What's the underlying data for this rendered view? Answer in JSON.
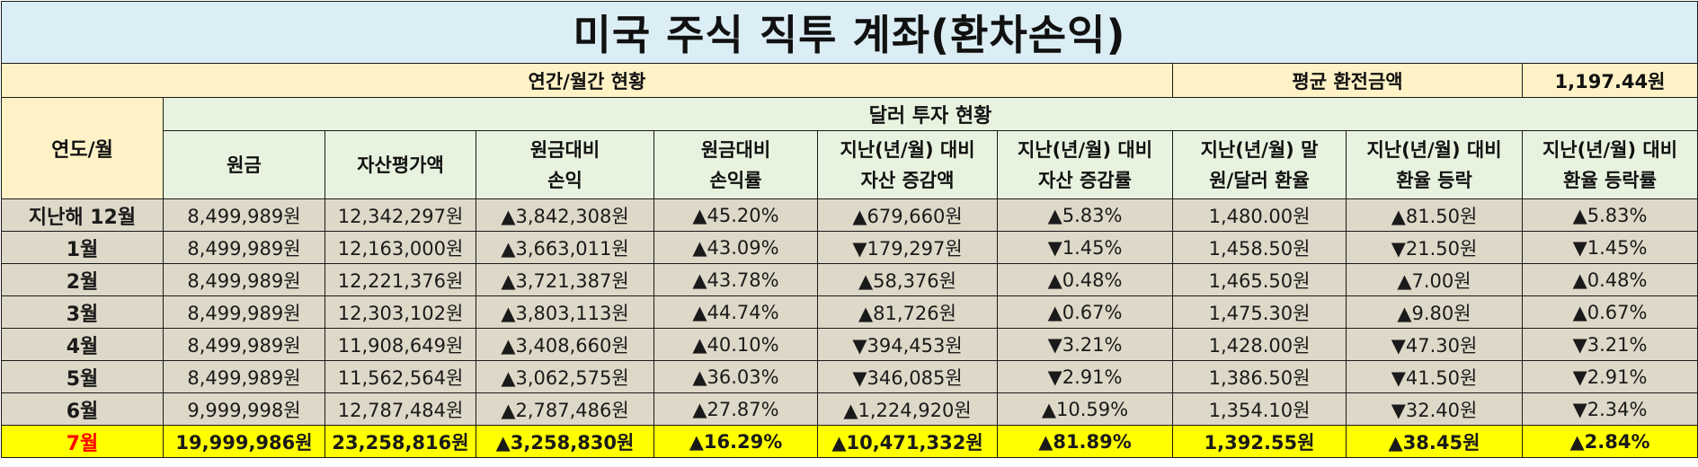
{
  "title": "미국 주식 직투 계좌(환차손익)",
  "summary": {
    "status_label": "연간/월간 현황",
    "avg_exchange_label": "평균 환전금액",
    "avg_exchange_value": "1,197.44원"
  },
  "header": {
    "month_col": "연도/월",
    "group": "달러 투자 현황",
    "columns": [
      [
        "원금"
      ],
      [
        "자산평가액"
      ],
      [
        "원금대비",
        "손익"
      ],
      [
        "원금대비",
        "손익률"
      ],
      [
        "지난(년/월) 대비",
        "자산 증감액"
      ],
      [
        "지난(년/월) 대비",
        "자산 증감률"
      ],
      [
        "지난(년/월) 말",
        "원/달러 환율"
      ],
      [
        "지난(년/월) 대비",
        "환율 등락"
      ],
      [
        "지난(년/월) 대비",
        "환율 등락률"
      ]
    ]
  },
  "colors": {
    "up": "#ff0000",
    "down": "#0000ff",
    "highlight": "#ffff00"
  },
  "rows": [
    {
      "month": "지난해 12월",
      "current": false,
      "cells": [
        {
          "text": "8,499,989원",
          "trend": "none"
        },
        {
          "text": "12,342,297원",
          "trend": "none"
        },
        {
          "text": "▲3,842,308원",
          "trend": "up"
        },
        {
          "text": "▲45.20%",
          "trend": "up"
        },
        {
          "text": "▲679,660원",
          "trend": "up"
        },
        {
          "text": "▲5.83%",
          "trend": "up"
        },
        {
          "text": "1,480.00원",
          "trend": "none"
        },
        {
          "text": "▲81.50원",
          "trend": "up"
        },
        {
          "text": "▲5.83%",
          "trend": "up"
        }
      ]
    },
    {
      "month": "1월",
      "current": false,
      "cells": [
        {
          "text": "8,499,989원",
          "trend": "none"
        },
        {
          "text": "12,163,000원",
          "trend": "none"
        },
        {
          "text": "▲3,663,011원",
          "trend": "up"
        },
        {
          "text": "▲43.09%",
          "trend": "up"
        },
        {
          "text": "▼179,297원",
          "trend": "down"
        },
        {
          "text": "▼1.45%",
          "trend": "down"
        },
        {
          "text": "1,458.50원",
          "trend": "none"
        },
        {
          "text": "▼21.50원",
          "trend": "down"
        },
        {
          "text": "▼1.45%",
          "trend": "down"
        }
      ]
    },
    {
      "month": "2월",
      "current": false,
      "cells": [
        {
          "text": "8,499,989원",
          "trend": "none"
        },
        {
          "text": "12,221,376원",
          "trend": "none"
        },
        {
          "text": "▲3,721,387원",
          "trend": "up"
        },
        {
          "text": "▲43.78%",
          "trend": "up"
        },
        {
          "text": "▲58,376원",
          "trend": "up"
        },
        {
          "text": "▲0.48%",
          "trend": "up"
        },
        {
          "text": "1,465.50원",
          "trend": "none"
        },
        {
          "text": "▲7.00원",
          "trend": "up"
        },
        {
          "text": "▲0.48%",
          "trend": "up"
        }
      ]
    },
    {
      "month": "3월",
      "current": false,
      "cells": [
        {
          "text": "8,499,989원",
          "trend": "none"
        },
        {
          "text": "12,303,102원",
          "trend": "none"
        },
        {
          "text": "▲3,803,113원",
          "trend": "up"
        },
        {
          "text": "▲44.74%",
          "trend": "up"
        },
        {
          "text": "▲81,726원",
          "trend": "up"
        },
        {
          "text": "▲0.67%",
          "trend": "up"
        },
        {
          "text": "1,475.30원",
          "trend": "none"
        },
        {
          "text": "▲9.80원",
          "trend": "up"
        },
        {
          "text": "▲0.67%",
          "trend": "up"
        }
      ]
    },
    {
      "month": "4월",
      "current": false,
      "cells": [
        {
          "text": "8,499,989원",
          "trend": "none"
        },
        {
          "text": "11,908,649원",
          "trend": "none"
        },
        {
          "text": "▲3,408,660원",
          "trend": "up"
        },
        {
          "text": "▲40.10%",
          "trend": "up"
        },
        {
          "text": "▼394,453원",
          "trend": "down"
        },
        {
          "text": "▼3.21%",
          "trend": "down"
        },
        {
          "text": "1,428.00원",
          "trend": "none"
        },
        {
          "text": "▼47.30원",
          "trend": "down"
        },
        {
          "text": "▼3.21%",
          "trend": "down"
        }
      ]
    },
    {
      "month": "5월",
      "current": false,
      "cells": [
        {
          "text": "8,499,989원",
          "trend": "none"
        },
        {
          "text": "11,562,564원",
          "trend": "none"
        },
        {
          "text": "▲3,062,575원",
          "trend": "up"
        },
        {
          "text": "▲36.03%",
          "trend": "up"
        },
        {
          "text": "▼346,085원",
          "trend": "down"
        },
        {
          "text": "▼2.91%",
          "trend": "down"
        },
        {
          "text": "1,386.50원",
          "trend": "none"
        },
        {
          "text": "▼41.50원",
          "trend": "down"
        },
        {
          "text": "▼2.91%",
          "trend": "down"
        }
      ]
    },
    {
      "month": "6월",
      "current": false,
      "cells": [
        {
          "text": "9,999,998원",
          "trend": "none"
        },
        {
          "text": "12,787,484원",
          "trend": "none"
        },
        {
          "text": "▲2,787,486원",
          "trend": "up"
        },
        {
          "text": "▲27.87%",
          "trend": "up"
        },
        {
          "text": "▲1,224,920원",
          "trend": "up"
        },
        {
          "text": "▲10.59%",
          "trend": "up"
        },
        {
          "text": "1,354.10원",
          "trend": "none"
        },
        {
          "text": "▼32.40원",
          "trend": "down"
        },
        {
          "text": "▼2.34%",
          "trend": "down"
        }
      ]
    },
    {
      "month": "7월",
      "current": true,
      "cells": [
        {
          "text": "19,999,986원",
          "trend": "none"
        },
        {
          "text": "23,258,816원",
          "trend": "none"
        },
        {
          "text": "▲3,258,830원",
          "trend": "up"
        },
        {
          "text": "▲16.29%",
          "trend": "up"
        },
        {
          "text": "▲10,471,332원",
          "trend": "up"
        },
        {
          "text": "▲81.89%",
          "trend": "up"
        },
        {
          "text": "1,392.55원",
          "trend": "none"
        },
        {
          "text": "▲38.45원",
          "trend": "up"
        },
        {
          "text": "▲2.84%",
          "trend": "up"
        }
      ]
    }
  ]
}
